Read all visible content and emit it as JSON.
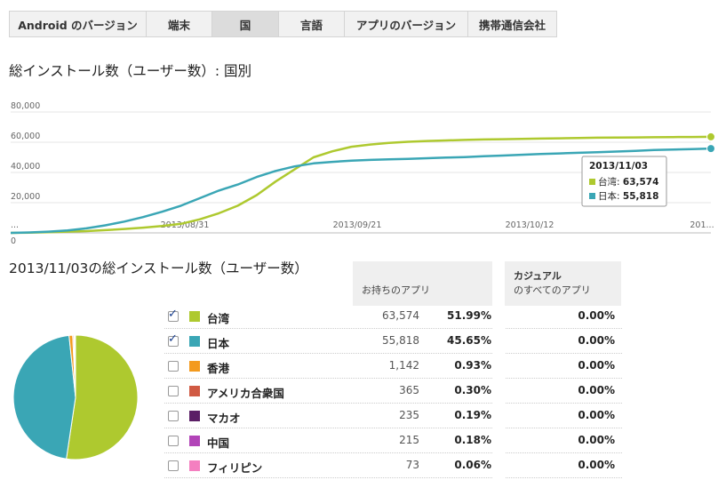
{
  "tabs": [
    {
      "label": "Android のバージョン",
      "active": false
    },
    {
      "label": "端末",
      "active": false
    },
    {
      "label": "国",
      "active": true
    },
    {
      "label": "言語",
      "active": false
    },
    {
      "label": "アプリのバージョン",
      "active": false
    },
    {
      "label": "携帯通信会社",
      "active": false
    }
  ],
  "chart_title": "総インストール数（ユーザー数）: 国別",
  "chart_data": {
    "type": "line",
    "x_tick_labels": [
      "...",
      "2013/08/31",
      "2013/09/21",
      "2013/10/12",
      "201..."
    ],
    "y_tick_labels": [
      "0",
      "20,000",
      "40,000",
      "60,000",
      "80,000"
    ],
    "ylim": [
      0,
      80000
    ],
    "grid": true,
    "series": [
      {
        "name": "台湾",
        "color": "#aec92f",
        "values": [
          0,
          200,
          500,
          800,
          1200,
          1800,
          2600,
          3500,
          4500,
          6000,
          9000,
          13000,
          18000,
          25000,
          34000,
          42000,
          50000,
          54000,
          57000,
          58500,
          59500,
          60300,
          60800,
          61200,
          61500,
          61800,
          62000,
          62200,
          62400,
          62600,
          62800,
          63000,
          63100,
          63200,
          63300,
          63400,
          63500,
          63574
        ]
      },
      {
        "name": "日本",
        "color": "#3aa6b5",
        "values": [
          0,
          300,
          800,
          1600,
          3000,
          5000,
          7500,
          10500,
          14000,
          18000,
          23000,
          28000,
          32000,
          37000,
          41000,
          44000,
          46000,
          47000,
          47800,
          48300,
          48700,
          49000,
          49400,
          49800,
          50200,
          50700,
          51200,
          51700,
          52200,
          52600,
          53000,
          53400,
          53800,
          54300,
          54800,
          55200,
          55500,
          55818
        ]
      }
    ],
    "tooltip": {
      "date": "2013/11/03",
      "rows": [
        {
          "name": "台湾",
          "value": "63,574",
          "color": "#aec92f"
        },
        {
          "name": "日本",
          "value": "55,818",
          "color": "#3aa6b5"
        }
      ]
    }
  },
  "table_title": "2013/11/03の総インストール数（ユーザー数）",
  "headers": {
    "owned": "お持ちのアプリ",
    "casual_line1": "カジュアル",
    "casual_line2": "のすべてのアプリ"
  },
  "rows": [
    {
      "checked": true,
      "color": "#aec92f",
      "name": "台湾",
      "count": "63,574",
      "pct": "51.99%",
      "casual": "0.00%",
      "value": 63574
    },
    {
      "checked": true,
      "color": "#3aa6b5",
      "name": "日本",
      "count": "55,818",
      "pct": "45.65%",
      "casual": "0.00%",
      "value": 55818
    },
    {
      "checked": false,
      "color": "#f39a1e",
      "name": "香港",
      "count": "1,142",
      "pct": "0.93%",
      "casual": "0.00%",
      "value": 1142
    },
    {
      "checked": false,
      "color": "#d05a43",
      "name": "アメリカ合衆国",
      "count": "365",
      "pct": "0.30%",
      "casual": "0.00%",
      "value": 365
    },
    {
      "checked": false,
      "color": "#5b1f66",
      "name": "マカオ",
      "count": "235",
      "pct": "0.19%",
      "casual": "0.00%",
      "value": 235
    },
    {
      "checked": false,
      "color": "#b244b8",
      "name": "中国",
      "count": "215",
      "pct": "0.18%",
      "casual": "0.00%",
      "value": 215
    },
    {
      "checked": false,
      "color": "#f47fc0",
      "name": "フィリピン",
      "count": "73",
      "pct": "0.06%",
      "casual": "0.00%",
      "value": 73
    }
  ]
}
